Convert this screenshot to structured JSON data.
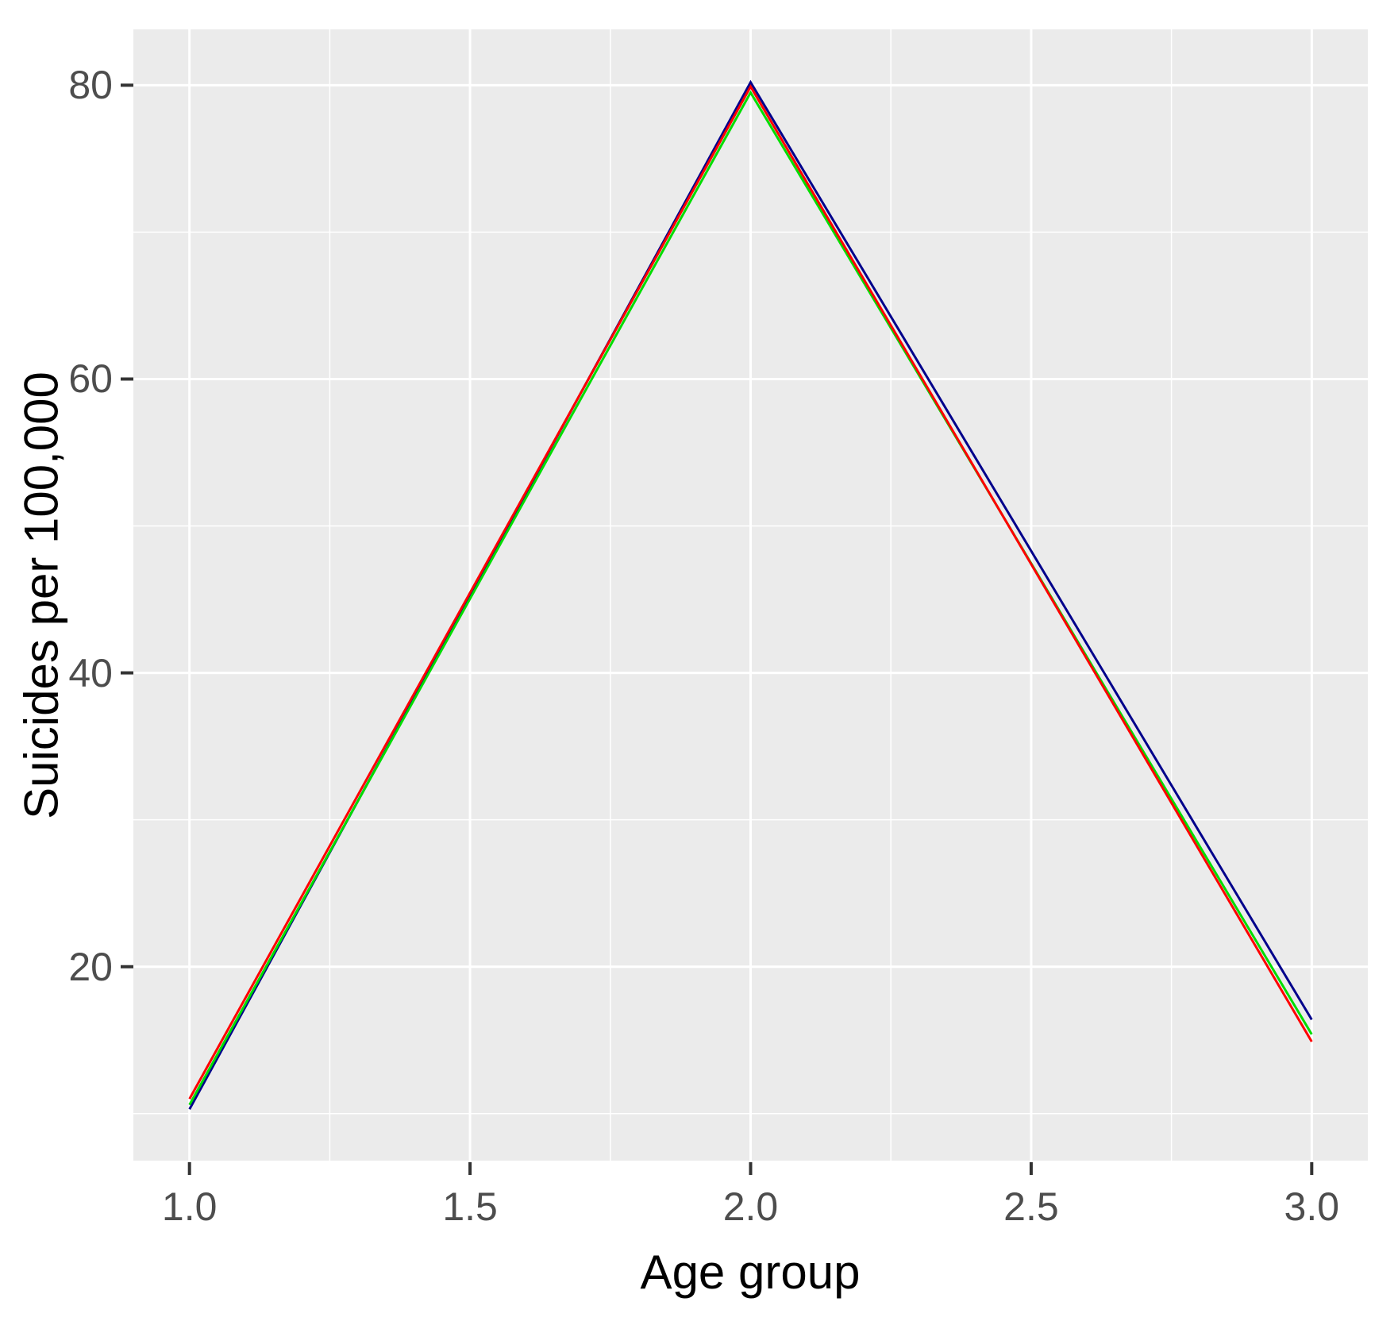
{
  "chart_data": {
    "type": "line",
    "title": "",
    "xlabel": "Age group",
    "ylabel": "Suicides per 100,000",
    "x": [
      1.0,
      2.0,
      3.0
    ],
    "series": [
      {
        "name": "dark-blue-line",
        "color": "#00008B",
        "values": [
          10.3,
          80.2,
          16.4
        ]
      },
      {
        "name": "green-line",
        "color": "#00DD00",
        "values": [
          10.6,
          79.5,
          15.4
        ]
      },
      {
        "name": "red-line",
        "color": "#FF0000",
        "values": [
          11.0,
          79.9,
          14.9
        ]
      }
    ],
    "xlim": [
      0.9,
      3.1
    ],
    "ylim": [
      6.8,
      83.8
    ],
    "x_ticks": {
      "values": [
        1.0,
        1.5,
        2.0,
        2.5,
        3.0
      ],
      "labels": [
        "1.0",
        "1.5",
        "2.0",
        "2.5",
        "3.0"
      ]
    },
    "y_ticks": {
      "values": [
        20,
        40,
        60,
        80
      ],
      "labels": [
        "20",
        "40",
        "60",
        "80"
      ]
    },
    "x_minor": [
      1.25,
      1.75,
      2.25,
      2.75
    ],
    "y_minor": [
      10,
      30,
      50,
      70
    ],
    "grid": "major-and-minor-white-on-grey",
    "legend": "none",
    "colors": {
      "panel_bg": "#EBEBEB",
      "grid": "#FFFFFF",
      "tick_mark": "#333333",
      "tick_label": "#4D4D4D",
      "axis_title": "#000000",
      "background": "#FFFFFF"
    }
  }
}
